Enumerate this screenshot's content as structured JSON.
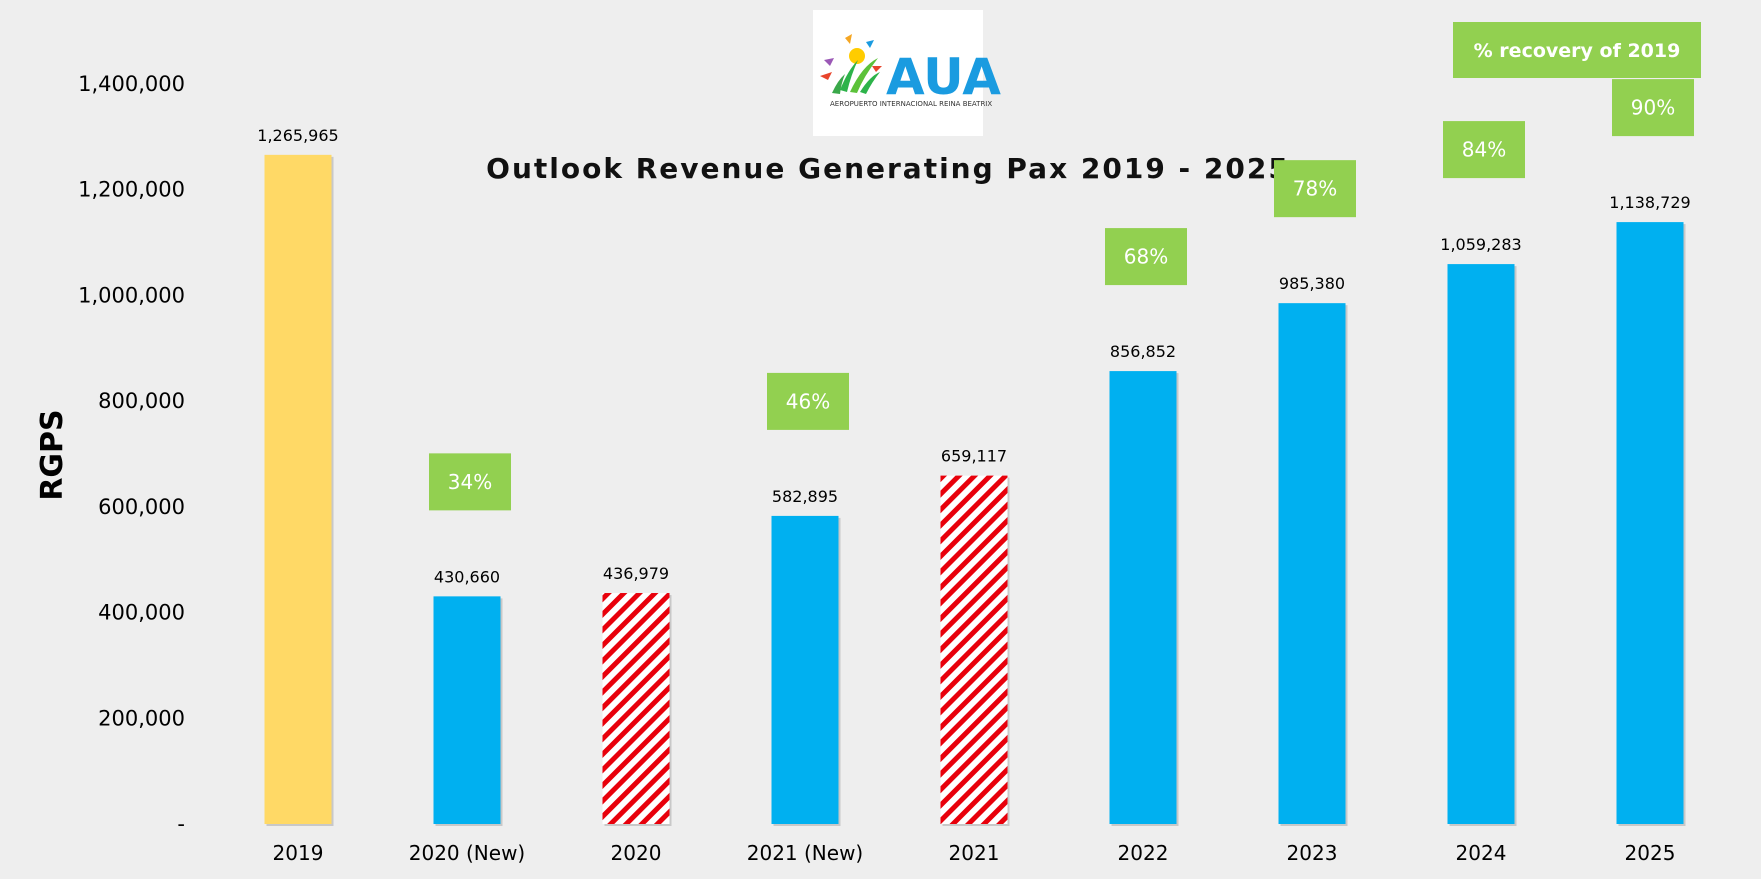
{
  "chart_data": {
    "type": "bar",
    "title": "Outlook Revenue Generating Pax 2019 - 2025",
    "ylabel": "RGPS",
    "xlabel": "",
    "ylim": [
      0,
      1400000
    ],
    "ytick_values": [
      0,
      200000,
      400000,
      600000,
      800000,
      1000000,
      1200000,
      1400000
    ],
    "ytick_labels": [
      "-",
      "200,000",
      "400,000",
      "600,000",
      "800,000",
      "1,000,000",
      "1,200,000",
      "1,400,000"
    ],
    "categories": [
      "2019",
      "2020 (New)",
      "2020",
      "2021 (New)",
      "2021",
      "2022",
      "2023",
      "2024",
      "2025"
    ],
    "values": [
      1265965,
      430660,
      436979,
      582895,
      659117,
      856852,
      985380,
      1059283,
      1138729
    ],
    "value_labels": [
      "1,265,965",
      "430,660",
      "436,979",
      "582,895",
      "659,117",
      "856,852",
      "985,380",
      "1,059,283",
      "1,138,729"
    ],
    "bar_styles": [
      "solid",
      "solid",
      "hatched",
      "solid",
      "hatched",
      "solid",
      "solid",
      "solid",
      "solid"
    ],
    "bar_colors": [
      "#ffd966",
      "#00b0f0",
      "#e8000b",
      "#00b0f0",
      "#e8000b",
      "#00b0f0",
      "#00b0f0",
      "#00b0f0",
      "#00b0f0"
    ],
    "recovery_labels": [
      "",
      "34%",
      "",
      "46%",
      "",
      "68%",
      "78%",
      "84%",
      "90%"
    ],
    "recovery_color": "#92d050",
    "legend": {
      "label": "% recovery of 2019",
      "placement": "top-right"
    },
    "grid": false
  },
  "logo": {
    "text": "AUA",
    "subtitle": "AEROPUERTO INTERNACIONAL REINA BEATRIX",
    "text_color": "#1a9be0"
  }
}
